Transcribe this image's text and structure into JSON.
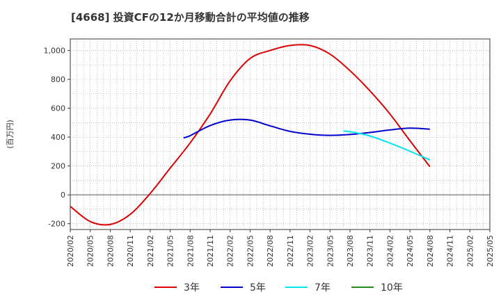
{
  "chart_data": {
    "type": "line",
    "title": "[4668]  投資CFの12か月移動合計の平均値の推移",
    "ylabel": "(百万円)",
    "xlabel": "",
    "ylim": [
      -240,
      1080
    ],
    "yticks": [
      -200,
      0,
      200,
      400,
      600,
      800,
      1000
    ],
    "ytick_labels": [
      "-200",
      "0",
      "200",
      "400",
      "600",
      "800",
      "1,000"
    ],
    "xticks": [
      "2020/02",
      "2020/05",
      "2020/08",
      "2020/11",
      "2021/02",
      "2021/05",
      "2021/08",
      "2021/11",
      "2022/02",
      "2022/05",
      "2022/08",
      "2022/11",
      "2023/02",
      "2023/05",
      "2023/08",
      "2023/11",
      "2024/02",
      "2024/05",
      "2024/08",
      "2024/11",
      "2025/02",
      "2025/05"
    ],
    "grid": true,
    "legend_position": "bottom",
    "series": [
      {
        "name": "3年",
        "color": "#dd0000",
        "x": [
          "2020/02",
          "2020/05",
          "2020/08",
          "2020/11",
          "2021/02",
          "2021/05",
          "2021/08",
          "2021/11",
          "2022/02",
          "2022/05",
          "2022/08",
          "2022/11",
          "2023/02",
          "2023/05",
          "2023/08",
          "2023/11",
          "2024/02",
          "2024/05",
          "2024/08"
        ],
        "y": [
          -80,
          -185,
          -205,
          -135,
          10,
          185,
          360,
          560,
          790,
          945,
          1000,
          1035,
          1035,
          975,
          860,
          720,
          560,
          375,
          195
        ]
      },
      {
        "name": "5年",
        "color": "#0000cc",
        "x": [
          "2021/07",
          "2021/08",
          "2021/11",
          "2022/02",
          "2022/05",
          "2022/08",
          "2022/11",
          "2023/02",
          "2023/05",
          "2023/08",
          "2023/11",
          "2024/02",
          "2024/05",
          "2024/08"
        ],
        "y": [
          395,
          410,
          480,
          518,
          518,
          478,
          440,
          420,
          412,
          418,
          432,
          450,
          462,
          455
        ]
      },
      {
        "name": "7年",
        "color": "#00e5ee",
        "x": [
          "2023/07",
          "2023/08",
          "2023/11",
          "2024/02",
          "2024/05",
          "2024/08"
        ],
        "y": [
          442,
          438,
          408,
          358,
          302,
          242
        ]
      },
      {
        "name": "10年",
        "color": "#228b22",
        "x": [],
        "y": []
      }
    ]
  }
}
